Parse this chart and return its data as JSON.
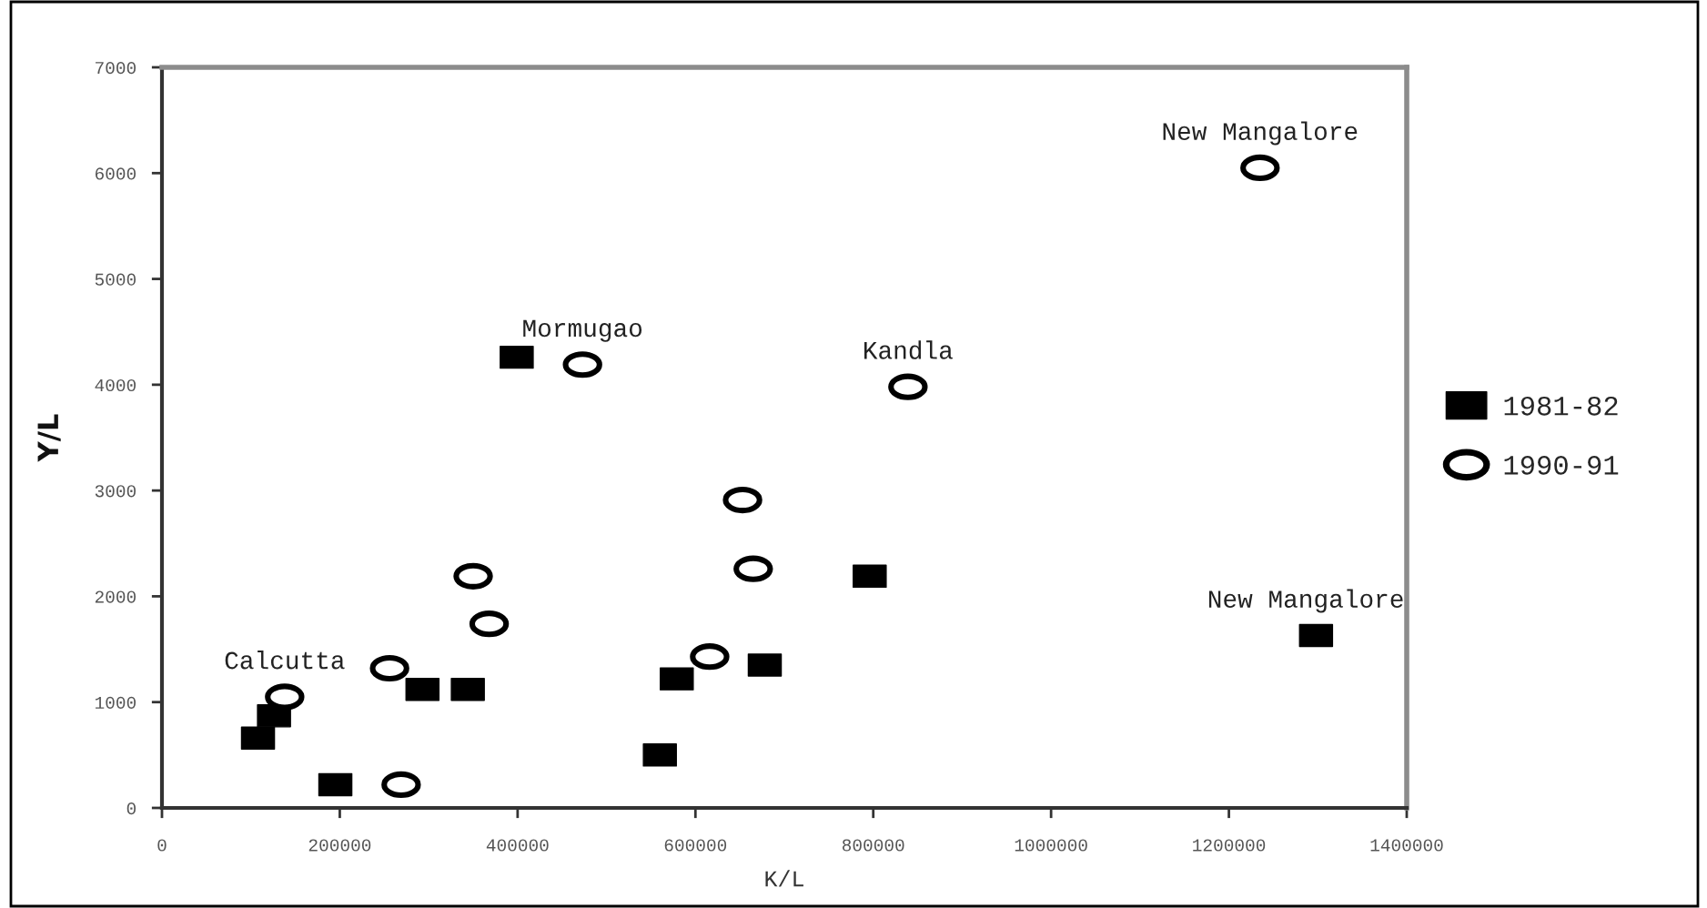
{
  "chart_data": {
    "type": "scatter",
    "xlabel": "K/L",
    "ylabel": "Y/L",
    "xlim": [
      0,
      1400000
    ],
    "xticks": [
      0,
      200000,
      400000,
      600000,
      800000,
      1000000,
      1200000,
      1400000
    ],
    "ylim": [
      0,
      7000
    ],
    "yticks": [
      0,
      1000,
      2000,
      3000,
      4000,
      5000,
      6000,
      7000
    ],
    "grid": false,
    "legend": "right",
    "series": [
      {
        "name": "1981-82",
        "color": "#000000",
        "marker": "square",
        "x": [
          108000,
          126000,
          195000,
          293000,
          344000,
          399000,
          560000,
          579000,
          678000,
          796000,
          1298000
        ],
        "values": [
          660,
          870,
          220,
          1120,
          1120,
          4260,
          500,
          1220,
          1350,
          2190,
          1630
        ]
      },
      {
        "name": "1990-91",
        "color": "#000000",
        "marker": "circle",
        "x": [
          138000,
          256000,
          269000,
          350000,
          368000,
          473000,
          616000,
          653000,
          665000,
          839000,
          1235000
        ],
        "values": [
          1050,
          1320,
          220,
          2190,
          1740,
          4190,
          1430,
          2910,
          2260,
          3980,
          6050
        ]
      }
    ],
    "annotations": [
      {
        "text": "New Mangalore",
        "x": 1235000,
        "y": 6050
      },
      {
        "text": "Mormugao",
        "x": 473000,
        "y": 4190
      },
      {
        "text": "Kandla",
        "x": 839000,
        "y": 3980
      },
      {
        "text": "New Mangalore",
        "x": 1298000,
        "y": 1630
      },
      {
        "text": "Calcutta",
        "x": 138000,
        "y": 1050
      }
    ]
  }
}
